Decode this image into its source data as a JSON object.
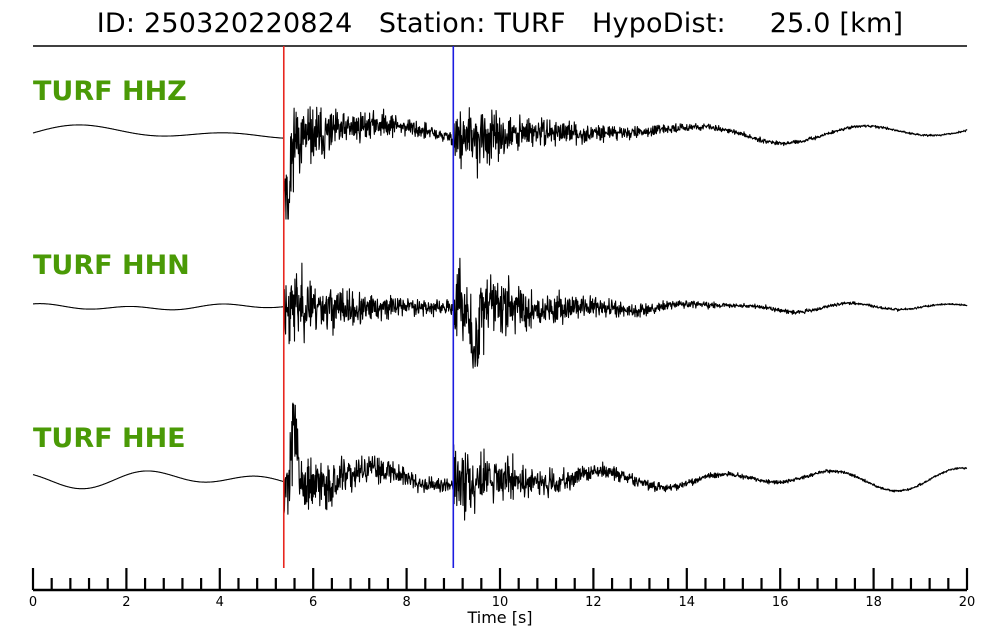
{
  "header": {
    "title": "ID: 250320220824   Station: TURF   HypoDist:     25.0 [km]"
  },
  "colors": {
    "label": "#4a9a06",
    "p_pick": "#e8261f",
    "s_pick": "#1c1ce0",
    "trace": "#000000"
  },
  "chart_data": {
    "type": "line",
    "title": "ID: 250320220824   Station: TURF   HypoDist:     25.0 [km]",
    "xlabel": "Time [s]",
    "ylabel": "",
    "xlim": [
      0,
      20
    ],
    "x_ticks": [
      "0",
      "2",
      "4",
      "6",
      "8",
      "10",
      "12",
      "14",
      "16",
      "18",
      "20"
    ],
    "minor_tick_step": 0.4,
    "grid": false,
    "picks": [
      {
        "phase": "P",
        "time": 5.37,
        "color": "#e8261f"
      },
      {
        "phase": "S",
        "time": 9.0,
        "color": "#1c1ce0"
      }
    ],
    "series": [
      {
        "name": "TURF HHZ",
        "pre_event_amplitude": 0.025,
        "peak_amplitude": 1.0,
        "peak_time": 5.45
      },
      {
        "name": "TURF HHN",
        "pre_event_amplitude": 0.01,
        "peak_amplitude": 1.0,
        "peak_time": 9.45
      },
      {
        "name": "TURF HHE",
        "pre_event_amplitude": 0.03,
        "peak_amplitude": 1.0,
        "peak_time": 5.6
      }
    ]
  }
}
